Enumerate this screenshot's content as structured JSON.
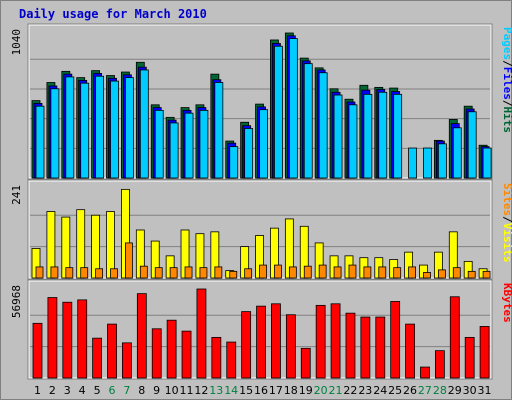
{
  "chart_data": {
    "type": "bar",
    "title": "Daily usage for March 2010",
    "days": [
      "1",
      "2",
      "3",
      "4",
      "5",
      "6",
      "7",
      "8",
      "9",
      "10",
      "11",
      "12",
      "13",
      "14",
      "15",
      "16",
      "17",
      "18",
      "19",
      "20",
      "21",
      "22",
      "23",
      "24",
      "25",
      "26",
      "27",
      "28",
      "29",
      "30",
      "31"
    ],
    "weekend_days": [
      "6",
      "7",
      "13",
      "14",
      "20",
      "21",
      "27",
      "28"
    ],
    "colors": {
      "hits": "#006633",
      "files": "#0000ff",
      "pages": "#00ccff",
      "visits": "#ffff00",
      "sites": "#ff8800",
      "kbytes": "#ff0000",
      "weekday_label": "#000000",
      "weekend_label": "#008040"
    },
    "panels": [
      {
        "ymax_label": "1040",
        "ymax": 1040,
        "legend": [
          {
            "text": "Hits",
            "color": "#006633"
          },
          {
            "text": "/",
            "color": "#000000"
          },
          {
            "text": "Files",
            "color": "#0000ff"
          },
          {
            "text": "/",
            "color": "#000000"
          },
          {
            "text": "Pages",
            "color": "#00ccff"
          }
        ],
        "series": [
          {
            "name": "Hits",
            "values": [
              555,
              685,
              765,
              720,
              770,
              735,
              760,
              830,
              525,
              435,
              505,
              525,
              745,
              265,
              400,
              530,
              990,
              1040,
              860,
              790,
              640,
              565,
              665,
              650,
              645,
              0,
              0,
              270,
              420,
              515,
              235
            ]
          },
          {
            "name": "Files",
            "values": [
              535,
              660,
              745,
              700,
              750,
              715,
              740,
              795,
              505,
              415,
              485,
              505,
              705,
              250,
              375,
              510,
              965,
              1020,
              840,
              775,
              615,
              545,
              630,
              635,
              620,
              0,
              0,
              265,
              390,
              495,
              225
            ]
          },
          {
            "name": "Pages",
            "values": [
              515,
              640,
              725,
              680,
              730,
              695,
              720,
              775,
              485,
              395,
              465,
              485,
              685,
              225,
              355,
              490,
              945,
              1000,
              820,
              755,
              595,
              525,
              600,
              615,
              600,
              215,
              215,
              245,
              360,
              475,
              215
            ]
          }
        ]
      },
      {
        "ymax_label": "241",
        "ymax": 241,
        "legend": [
          {
            "text": "Visits",
            "color": "#ffff00"
          },
          {
            "text": "/",
            "color": "#000000"
          },
          {
            "text": "Sites",
            "color": "#ff8800"
          }
        ],
        "series": [
          {
            "name": "Visits",
            "values": [
              80,
              180,
              165,
              185,
              170,
              180,
              240,
              130,
              100,
              60,
              130,
              120,
              125,
              20,
              85,
              115,
              135,
              160,
              140,
              95,
              60,
              60,
              55,
              55,
              50,
              70,
              35,
              70,
              125,
              45,
              25
            ]
          },
          {
            "name": "Sites",
            "values": [
              30,
              30,
              28,
              28,
              25,
              25,
              95,
              32,
              28,
              28,
              30,
              28,
              30,
              18,
              25,
              35,
              35,
              30,
              32,
              35,
              30,
              35,
              30,
              30,
              28,
              30,
              15,
              22,
              28,
              18,
              18
            ]
          }
        ]
      },
      {
        "ymax_label": "56968",
        "ymax": 56968,
        "legend": [
          {
            "text": "KBytes",
            "color": "#ff0000"
          }
        ],
        "series": [
          {
            "name": "KBytes",
            "values": [
              35000,
              51500,
              48500,
              50000,
              25500,
              34500,
              22500,
              54000,
              31500,
              37000,
              30000,
              56968,
              26000,
              23000,
              42500,
              46000,
              47500,
              40500,
              19000,
              46500,
              47500,
              41500,
              39000,
              39000,
              49000,
              34500,
              7000,
              17500,
              52000,
              26000,
              33000
            ]
          }
        ]
      }
    ]
  }
}
